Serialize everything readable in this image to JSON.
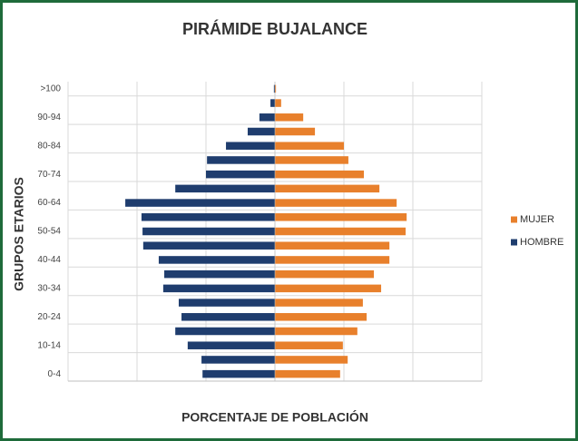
{
  "chart_data": {
    "type": "pyramid",
    "title": "PIRÁMIDE BUJALANCE",
    "x_label": "PORCENTAJE DE POBLACIÓN",
    "y_label": "GRUPOS ETARIOS",
    "categories": [
      "0-4",
      null,
      "10-14",
      null,
      "20-24",
      null,
      "30-34",
      null,
      "40-44",
      null,
      "50-54",
      null,
      "60-64",
      null,
      "70-74",
      null,
      "80-84",
      null,
      "90-94",
      null,
      ">100"
    ],
    "series": [
      {
        "name": "MUJER",
        "color": "#e8802c",
        "values": [
          1.89,
          2.11,
          1.97,
          2.39,
          2.66,
          2.55,
          3.08,
          2.87,
          3.32,
          3.32,
          3.79,
          3.82,
          3.53,
          3.03,
          2.58,
          2.13,
          2.0,
          1.16,
          0.82,
          0.18,
          0.03
        ]
      },
      {
        "name": "HOMBRE",
        "color": "#1f3d6e",
        "values": [
          -2.1,
          -2.13,
          -2.53,
          -2.89,
          -2.71,
          -2.79,
          -3.24,
          -3.21,
          -3.37,
          -3.82,
          -3.84,
          -3.87,
          -4.34,
          -2.89,
          -2.0,
          -1.97,
          -1.42,
          -0.79,
          -0.45,
          -0.13,
          -0.03
        ]
      }
    ],
    "xlim": [
      -6,
      6
    ],
    "xticks": [
      -6,
      -4,
      -2,
      0,
      2,
      4,
      6
    ],
    "grid": true,
    "legend": "right"
  }
}
